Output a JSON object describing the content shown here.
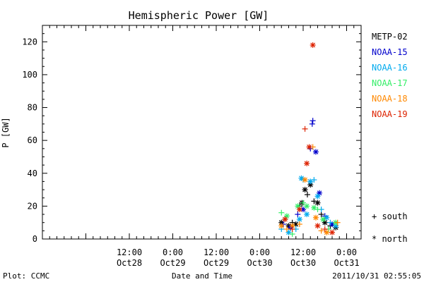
{
  "chart_data": {
    "type": "scatter",
    "title": "Hemispheric Power [GW]",
    "ylabel": "P [GW]",
    "xlabel": "Date and Time",
    "ylim": [
      0,
      130
    ],
    "yticks": [
      0,
      20,
      40,
      60,
      80,
      100,
      120
    ],
    "xlim": [
      "2011-10-27 12:00",
      "2011-10-31 04:00"
    ],
    "xticks": [
      {
        "time": "2011-10-28 12:00",
        "line1": "12:00",
        "line2": "Oct28"
      },
      {
        "time": "2011-10-29 00:00",
        "line1": "0:00",
        "line2": "Oct29"
      },
      {
        "time": "2011-10-29 12:00",
        "line1": "12:00",
        "line2": "Oct29"
      },
      {
        "time": "2011-10-30 00:00",
        "line1": "0:00",
        "line2": "Oct30"
      },
      {
        "time": "2011-10-30 12:00",
        "line1": "12:00",
        "line2": "Oct30"
      },
      {
        "time": "2011-10-31 00:00",
        "line1": "0:00",
        "line2": "Oct31"
      }
    ],
    "legend_placement": "right",
    "symbol_legend": [
      {
        "symbol": "+",
        "label": "south"
      },
      {
        "symbol": "*",
        "label": "north"
      }
    ],
    "series": [
      {
        "name": "METP-02",
        "color": "#000000",
        "points": [
          {
            "x": "2011-10-30 06:00",
            "y": 10,
            "m": "*"
          },
          {
            "x": "2011-10-30 07:00",
            "y": 12,
            "m": "+"
          },
          {
            "x": "2011-10-30 08:00",
            "y": 8,
            "m": "*"
          },
          {
            "x": "2011-10-30 09:00",
            "y": 10,
            "m": "+"
          },
          {
            "x": "2011-10-30 10:00",
            "y": 9,
            "m": "*"
          },
          {
            "x": "2011-10-30 11:00",
            "y": 20,
            "m": "+"
          },
          {
            "x": "2011-10-30 11:40",
            "y": 22,
            "m": "*"
          },
          {
            "x": "2011-10-30 12:30",
            "y": 30,
            "m": "*"
          },
          {
            "x": "2011-10-30 13:10",
            "y": 27,
            "m": "+"
          },
          {
            "x": "2011-10-30 14:00",
            "y": 33,
            "m": "*"
          },
          {
            "x": "2011-10-30 15:00",
            "y": 23,
            "m": "+"
          },
          {
            "x": "2011-10-30 16:00",
            "y": 22,
            "m": "*"
          },
          {
            "x": "2011-10-30 17:00",
            "y": 15,
            "m": "+"
          },
          {
            "x": "2011-10-30 18:00",
            "y": 10,
            "m": "*"
          },
          {
            "x": "2011-10-30 19:30",
            "y": 8,
            "m": "+"
          },
          {
            "x": "2011-10-30 21:00",
            "y": 7,
            "m": "*"
          }
        ]
      },
      {
        "name": "NOAA-15",
        "color": "#0000cc",
        "points": [
          {
            "x": "2011-10-30 06:30",
            "y": 9,
            "m": "+"
          },
          {
            "x": "2011-10-30 08:30",
            "y": 7,
            "m": "*"
          },
          {
            "x": "2011-10-30 10:30",
            "y": 15,
            "m": "+"
          },
          {
            "x": "2011-10-30 12:00",
            "y": 18,
            "m": "*"
          },
          {
            "x": "2011-10-30 14:00",
            "y": 55,
            "m": "+"
          },
          {
            "x": "2011-10-30 14:30",
            "y": 70,
            "m": "+"
          },
          {
            "x": "2011-10-30 14:40",
            "y": 72,
            "m": "+"
          },
          {
            "x": "2011-10-30 15:30",
            "y": 53,
            "m": "*"
          },
          {
            "x": "2011-10-30 16:30",
            "y": 28,
            "m": "*"
          },
          {
            "x": "2011-10-30 18:00",
            "y": 14,
            "m": "+"
          },
          {
            "x": "2011-10-30 20:00",
            "y": 9,
            "m": "*"
          }
        ]
      },
      {
        "name": "NOAA-16",
        "color": "#00aaee",
        "points": [
          {
            "x": "2011-10-30 06:00",
            "y": 6,
            "m": "+"
          },
          {
            "x": "2011-10-30 08:00",
            "y": 4,
            "m": "*"
          },
          {
            "x": "2011-10-30 10:00",
            "y": 6,
            "m": "+"
          },
          {
            "x": "2011-10-30 11:00",
            "y": 12,
            "m": "*"
          },
          {
            "x": "2011-10-30 11:30",
            "y": 37,
            "m": "*"
          },
          {
            "x": "2011-10-30 12:00",
            "y": 36,
            "m": "+"
          },
          {
            "x": "2011-10-30 13:00",
            "y": 15,
            "m": "*"
          },
          {
            "x": "2011-10-30 14:00",
            "y": 35,
            "m": "*"
          },
          {
            "x": "2011-10-30 15:00",
            "y": 36,
            "m": "+"
          },
          {
            "x": "2011-10-30 16:00",
            "y": 26,
            "m": "*"
          },
          {
            "x": "2011-10-30 17:00",
            "y": 18,
            "m": "+"
          },
          {
            "x": "2011-10-30 18:30",
            "y": 13,
            "m": "*"
          },
          {
            "x": "2011-10-30 19:30",
            "y": 10,
            "m": "+"
          },
          {
            "x": "2011-10-30 21:00",
            "y": 8,
            "m": "*"
          }
        ]
      },
      {
        "name": "NOAA-17",
        "color": "#33ee66",
        "points": [
          {
            "x": "2011-10-30 06:00",
            "y": 16,
            "m": "+"
          },
          {
            "x": "2011-10-30 07:30",
            "y": 14,
            "m": "*"
          },
          {
            "x": "2011-10-30 09:00",
            "y": 3,
            "m": "+"
          },
          {
            "x": "2011-10-30 10:30",
            "y": 20,
            "m": "*"
          },
          {
            "x": "2011-10-30 12:00",
            "y": 22,
            "m": "+"
          },
          {
            "x": "2011-10-30 13:00",
            "y": 20,
            "m": "*"
          },
          {
            "x": "2011-10-30 15:00",
            "y": 19,
            "m": "*"
          },
          {
            "x": "2011-10-30 16:00",
            "y": 18,
            "m": "+"
          },
          {
            "x": "2011-10-30 17:30",
            "y": 12,
            "m": "*"
          },
          {
            "x": "2011-10-30 19:00",
            "y": 6,
            "m": "+"
          },
          {
            "x": "2011-10-30 21:00",
            "y": 10,
            "m": "*"
          }
        ]
      },
      {
        "name": "NOAA-18",
        "color": "#ff8800",
        "points": [
          {
            "x": "2011-10-30 06:00",
            "y": 8,
            "m": "*"
          },
          {
            "x": "2011-10-30 07:30",
            "y": 6,
            "m": "+"
          },
          {
            "x": "2011-10-30 09:00",
            "y": 8,
            "m": "*"
          },
          {
            "x": "2011-10-30 11:00",
            "y": 9,
            "m": "+"
          },
          {
            "x": "2011-10-30 12:30",
            "y": 36,
            "m": "*"
          },
          {
            "x": "2011-10-30 14:40",
            "y": 56,
            "m": "+"
          },
          {
            "x": "2011-10-30 15:30",
            "y": 13,
            "m": "*"
          },
          {
            "x": "2011-10-30 17:00",
            "y": 5,
            "m": "+"
          },
          {
            "x": "2011-10-30 18:30",
            "y": 4,
            "m": "*"
          },
          {
            "x": "2011-10-30 21:30",
            "y": 10,
            "m": "+"
          }
        ]
      },
      {
        "name": "NOAA-19",
        "color": "#dd2200",
        "points": [
          {
            "x": "2011-10-30 07:00",
            "y": 12,
            "m": "*"
          },
          {
            "x": "2011-10-30 09:00",
            "y": 6,
            "m": "+"
          },
          {
            "x": "2011-10-30 11:00",
            "y": 18,
            "m": "*"
          },
          {
            "x": "2011-10-30 12:30",
            "y": 67,
            "m": "+"
          },
          {
            "x": "2011-10-30 13:00",
            "y": 46,
            "m": "*"
          },
          {
            "x": "2011-10-30 13:40",
            "y": 56,
            "m": "*"
          },
          {
            "x": "2011-10-30 14:40",
            "y": 118,
            "m": "*"
          },
          {
            "x": "2011-10-30 16:00",
            "y": 8,
            "m": "*"
          },
          {
            "x": "2011-10-30 18:00",
            "y": 6,
            "m": "+"
          },
          {
            "x": "2011-10-30 20:00",
            "y": 4,
            "m": "*"
          }
        ]
      }
    ]
  },
  "footer": {
    "left": "Plot: CCMC",
    "center": "Date and Time",
    "right": "2011/10/31 02:55:05"
  }
}
